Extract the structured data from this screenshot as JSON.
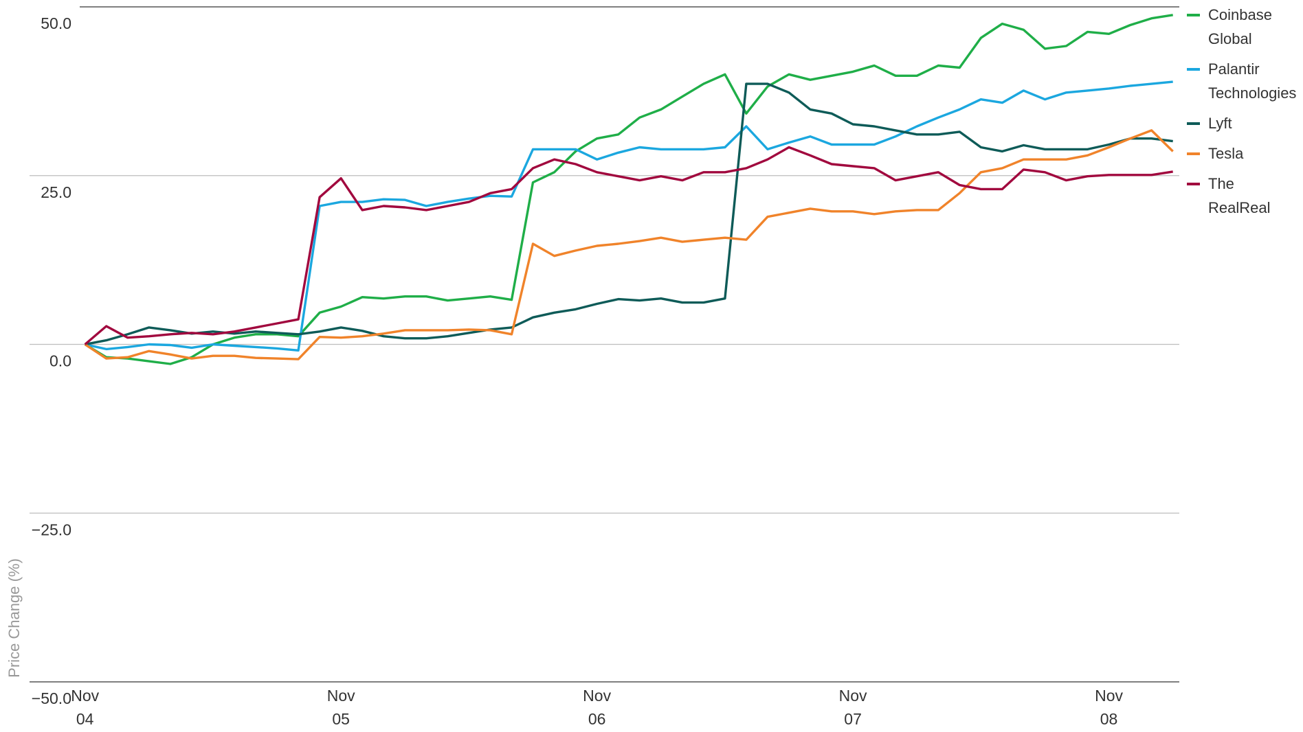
{
  "chart_data": {
    "type": "line",
    "y_label": "Price Change (%)",
    "x": [
      0,
      1,
      2,
      3,
      4,
      5,
      6,
      7,
      8,
      9,
      10,
      11,
      12,
      13,
      14,
      15,
      16,
      17,
      18,
      19,
      20,
      21,
      22,
      23,
      24,
      25,
      26,
      27,
      28,
      29,
      30,
      31,
      32,
      33,
      34,
      35,
      36,
      37,
      38,
      39,
      40,
      41,
      42,
      43,
      44,
      45,
      46,
      47,
      48,
      49,
      50,
      51
    ],
    "xlim": [
      -2.6,
      51.3
    ],
    "xticks": [
      {
        "value": 0,
        "label": "Nov 04"
      },
      {
        "value": 12,
        "label": "Nov 05"
      },
      {
        "value": 24,
        "label": "Nov 06"
      },
      {
        "value": 36,
        "label": "Nov 07"
      },
      {
        "value": 48,
        "label": "Nov 08"
      }
    ],
    "ylim": [
      -50,
      50
    ],
    "yticks": [
      {
        "value": 50,
        "label": "50.0"
      },
      {
        "value": 25,
        "label": "25.0"
      },
      {
        "value": 0,
        "label": "0.0"
      },
      {
        "value": -25,
        "label": "−25.0"
      },
      {
        "value": -50,
        "label": "−50.0"
      }
    ],
    "grid": true,
    "legend": "right",
    "series": [
      {
        "name": "Coinbase Global",
        "color": "#1fae48",
        "values": [
          0,
          -1.9,
          -2.1,
          -2.5,
          -2.9,
          -1.9,
          0,
          1,
          1.5,
          1.5,
          1.2,
          4.7,
          5.6,
          7,
          6.8,
          7.1,
          7.1,
          6.5,
          6.8,
          7.1,
          6.6,
          24,
          25.5,
          28.6,
          30.5,
          31.1,
          33.6,
          34.8,
          36.7,
          38.6,
          40,
          34.2,
          38.2,
          40,
          39.2,
          39.8,
          40.4,
          41.3,
          39.8,
          39.8,
          41.3,
          41,
          45.4,
          47.5,
          46.6,
          43.8,
          44.2,
          46.3,
          46,
          47.3,
          48.3,
          48.8
        ]
      },
      {
        "name": "Palantir Technologies",
        "color": "#1ba7df",
        "values": [
          0,
          -0.7,
          -0.4,
          0,
          -0.1,
          -0.5,
          0,
          -0.2,
          -0.4,
          -0.6,
          -0.9,
          20.5,
          21.1,
          21.1,
          21.5,
          21.4,
          20.5,
          21.1,
          21.6,
          22,
          21.9,
          28.9,
          28.9,
          28.9,
          27.4,
          28.4,
          29.2,
          28.9,
          28.9,
          28.9,
          29.2,
          32.3,
          28.9,
          29.9,
          30.8,
          29.6,
          29.6,
          29.6,
          30.8,
          32.3,
          33.6,
          34.8,
          36.3,
          35.8,
          37.6,
          36.3,
          37.3,
          37.6,
          37.9,
          38.3,
          38.6,
          38.9
        ]
      },
      {
        "name": "Lyft",
        "color": "#0e5b58",
        "values": [
          0,
          0.6,
          1.5,
          2.5,
          2.1,
          1.6,
          1.9,
          1.6,
          1.9,
          1.7,
          1.5,
          1.9,
          2.5,
          2,
          1.2,
          0.9,
          0.9,
          1.2,
          1.7,
          2.2,
          2.5,
          4,
          4.7,
          5.2,
          6,
          6.7,
          6.5,
          6.8,
          6.2,
          6.2,
          6.8,
          38.6,
          38.6,
          37.3,
          34.8,
          34.2,
          32.6,
          32.3,
          31.7,
          31.1,
          31.1,
          31.5,
          29.2,
          28.6,
          29.5,
          28.9,
          28.9,
          28.9,
          29.6,
          30.5,
          30.5,
          30.1
        ]
      },
      {
        "name": "Tesla",
        "color": "#f0832a",
        "values": [
          0,
          -2.1,
          -1.9,
          -1,
          -1.5,
          -2.1,
          -1.7,
          -1.7,
          -2,
          -2.1,
          -2.2,
          1.1,
          1,
          1.2,
          1.6,
          2.1,
          2.1,
          2.1,
          2.2,
          2.1,
          1.5,
          14.9,
          13.1,
          13.9,
          14.6,
          14.9,
          15.3,
          15.8,
          15.2,
          15.5,
          15.8,
          15.5,
          18.9,
          19.5,
          20.1,
          19.7,
          19.7,
          19.3,
          19.7,
          19.9,
          19.9,
          22.4,
          25.5,
          26.1,
          27.4,
          27.4,
          27.4,
          28,
          29.2,
          30.5,
          31.7,
          28.6
        ]
      },
      {
        "name": "The RealReal",
        "color": "#a1083e",
        "values": [
          0,
          2.7,
          1,
          1.2,
          1.5,
          1.7,
          1.5,
          1.9,
          2.5,
          3.1,
          3.7,
          21.8,
          24.6,
          19.9,
          20.5,
          20.3,
          19.9,
          20.5,
          21.1,
          22.4,
          23,
          26.1,
          27.4,
          26.7,
          25.5,
          24.9,
          24.3,
          24.9,
          24.3,
          25.5,
          25.5,
          26.1,
          27.4,
          29.2,
          28,
          26.7,
          26.4,
          26.1,
          24.3,
          24.9,
          25.5,
          23.6,
          23,
          23,
          25.9,
          25.5,
          24.3,
          24.9,
          25.1,
          25.1,
          25.1,
          25.6
        ]
      }
    ]
  }
}
